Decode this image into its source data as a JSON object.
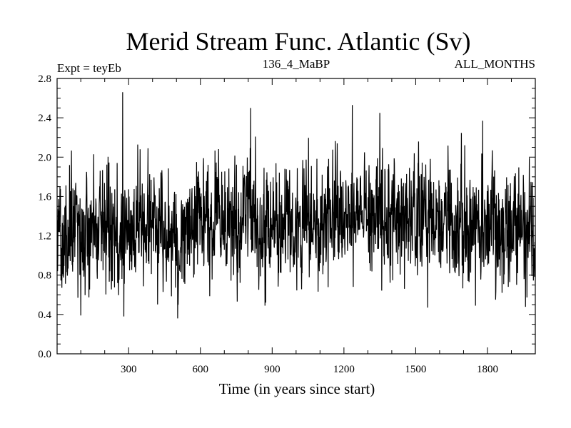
{
  "chart_data": {
    "type": "line",
    "title": "Merid Stream Func. Atlantic (Sv)",
    "subtitle_left": "Expt = teyEb",
    "subtitle_center": "136_4_MaBP",
    "subtitle_right": "ALL_MONTHS",
    "xlabel": "Time (in years since start)",
    "ylabel": "",
    "xlim": [
      1,
      2000
    ],
    "ylim": [
      0.0,
      2.8
    ],
    "xticks": [
      300,
      600,
      900,
      1200,
      1500,
      1800
    ],
    "yticks": [
      0.0,
      0.4,
      0.8,
      1.2,
      1.6,
      2.0,
      2.4,
      2.8
    ],
    "ytick_labels": [
      "0.0",
      "0.4",
      "0.8",
      "1.2",
      "1.6",
      "2.0",
      "2.4",
      "2.8"
    ],
    "grid": false,
    "series": [
      {
        "name": "Merid Stream Func. Atlantic",
        "color": "#000000",
        "n_points": 2000,
        "anchors_x": [
          1,
          50,
          100,
          150,
          200,
          260,
          275,
          300,
          350,
          400,
          410,
          450,
          500,
          505,
          550,
          600,
          650,
          700,
          750,
          800,
          810,
          850,
          870,
          900,
          950,
          1000,
          1050,
          1100,
          1150,
          1200,
          1235,
          1250,
          1300,
          1350,
          1400,
          1450,
          1500,
          1550,
          1600,
          1650,
          1700,
          1750,
          1800,
          1850,
          1900,
          1950,
          2000
        ],
        "anchors_mean": [
          1.15,
          1.2,
          1.2,
          1.25,
          1.25,
          1.25,
          1.3,
          1.3,
          1.3,
          1.3,
          1.25,
          1.25,
          1.25,
          1.25,
          1.3,
          1.3,
          1.25,
          1.3,
          1.3,
          1.35,
          1.35,
          1.35,
          1.3,
          1.35,
          1.35,
          1.3,
          1.3,
          1.35,
          1.4,
          1.4,
          1.45,
          1.4,
          1.4,
          1.45,
          1.45,
          1.4,
          1.35,
          1.35,
          1.4,
          1.35,
          1.3,
          1.3,
          1.3,
          1.3,
          1.25,
          1.3,
          1.3
        ],
        "std": 0.3,
        "max_value": 2.66,
        "max_at_x": 275,
        "min_value": 0.36,
        "min_at_x": 505,
        "notable_peaks": [
          [
            275,
            2.66
          ],
          [
            810,
            2.5
          ],
          [
            1235,
            2.53
          ],
          [
            1350,
            2.45
          ],
          [
            1780,
            2.37
          ]
        ],
        "notable_troughs": [
          [
            100,
            0.39
          ],
          [
            280,
            0.38
          ],
          [
            505,
            0.36
          ],
          [
            870,
            0.49
          ],
          [
            1550,
            0.47
          ],
          [
            1750,
            0.49
          ]
        ],
        "seed": 1364
      }
    ]
  }
}
